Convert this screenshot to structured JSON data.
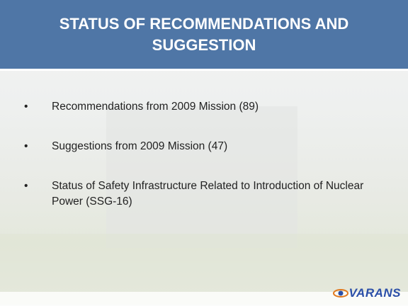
{
  "header": {
    "title": "STATUS OF RECOMMENDATIONS AND SUGGESTION"
  },
  "bullets": [
    "Recommendations from 2009 Mission (89)",
    "Suggestions from 2009 Mission (47)",
    "Status of Safety Infrastructure Related to Introduction of Nuclear Power (SSG-16)"
  ],
  "footer": {
    "logo": "VARANS"
  }
}
